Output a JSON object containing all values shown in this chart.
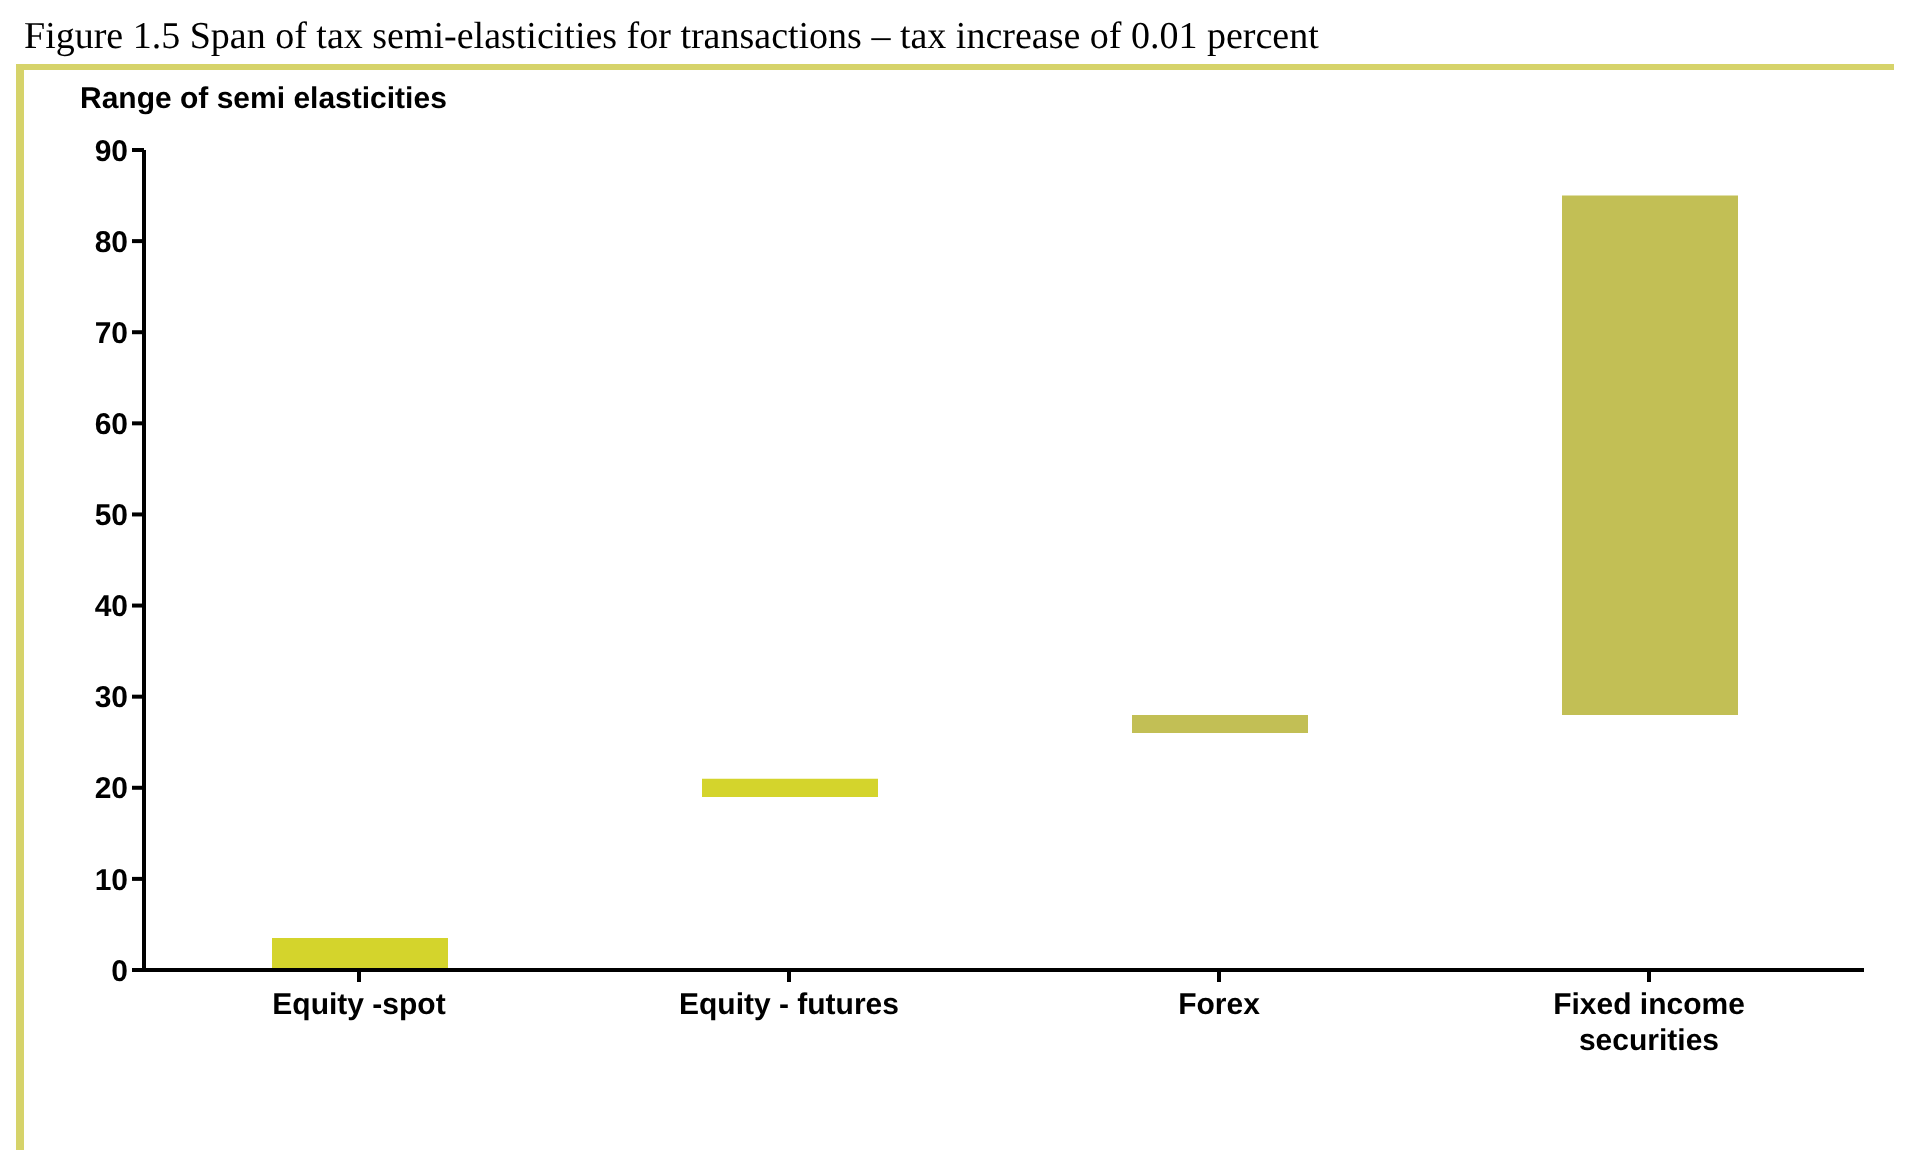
{
  "chart_data": {
    "type": "bar",
    "title": "Figure 1.5 Span of tax semi-elasticities for transactions – tax increase of 0.01 percent",
    "ylabel": "Range of semi elasticities",
    "categories": [
      "Equity -spot",
      "Equity - futures",
      "Forex",
      "Fixed income securities"
    ],
    "values": [
      3.5,
      2,
      2,
      57
    ],
    "base": [
      0,
      19,
      26,
      28
    ],
    "colors": [
      "#d4d42c",
      "#d4d42c",
      "#c2bf55",
      "#c2bf55"
    ],
    "ylim": [
      0,
      90
    ],
    "yticks": [
      0,
      10,
      20,
      30,
      40,
      50,
      60,
      70,
      80,
      90
    ],
    "grid": false
  }
}
